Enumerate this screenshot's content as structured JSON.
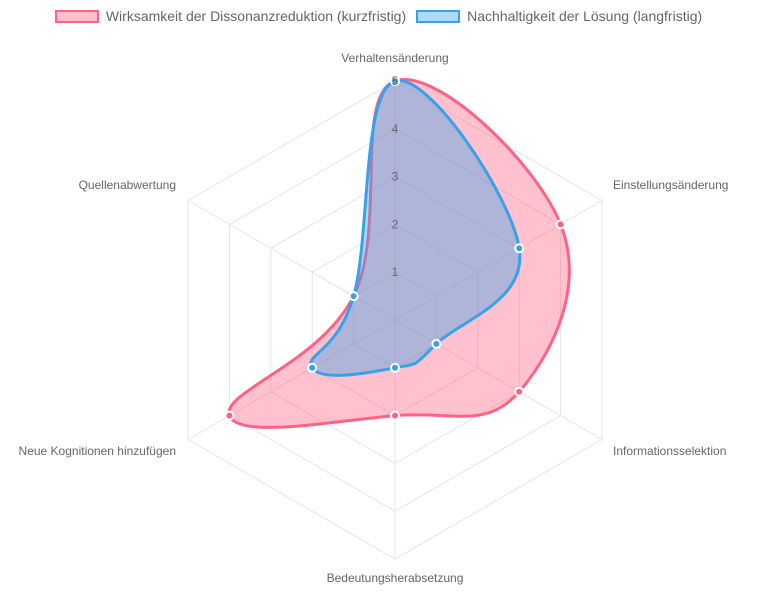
{
  "chart_data": {
    "type": "radar",
    "title": "",
    "categories": [
      "Verhaltensänderung",
      "Einstellungsänderung",
      "Informationsselektion",
      "Bedeutungsherabsetzung",
      "Neue Kognitionen hinzufügen",
      "Quellenabwertung"
    ],
    "series": [
      {
        "name": "Wirksamkeit der Dissonanzreduktion (kurzfristig)",
        "values": [
          5,
          4,
          3,
          2,
          4,
          1
        ],
        "border_color": "#ff6384",
        "fill_color": "rgba(255,99,132,0.4)"
      },
      {
        "name": "Nachhaltigkeit der Lösung (langfristig)",
        "values": [
          5,
          3,
          1,
          1,
          2,
          1
        ],
        "border_color": "#36a2eb",
        "fill_color": "rgba(54,162,235,0.4)"
      }
    ],
    "rlim": [
      0,
      5
    ],
    "ticks": [
      "1",
      "2",
      "3",
      "4",
      "5"
    ],
    "grid": true,
    "legend_position": "top"
  },
  "legend": {
    "items": [
      {
        "label": "Wirksamkeit der Dissonanzreduktion (kurzfristig)",
        "border": "#ff6384",
        "fill": "rgba(255,99,132,0.4)"
      },
      {
        "label": "Nachhaltigkeit der Lösung (langfristig)",
        "border": "#36a2eb",
        "fill": "rgba(54,162,235,0.4)"
      }
    ]
  }
}
